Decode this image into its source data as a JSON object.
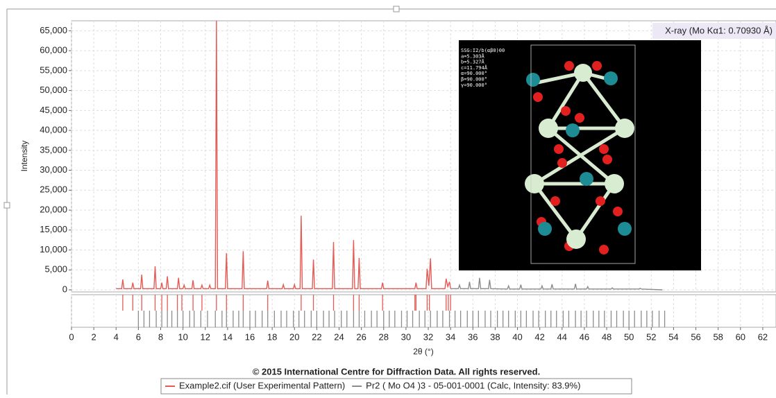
{
  "chart_data": {
    "type": "line",
    "x_label": "2θ (°)",
    "y_label": "Intensity",
    "annotation": "X-ray (Mo Kα1: 0.70930 Å)",
    "copyright": "© 2015 International Centre for Diffraction Data. All rights reserved.",
    "xlim": [
      0,
      63
    ],
    "ylim": [
      0,
      67500
    ],
    "xticks": [
      0,
      2,
      4,
      6,
      8,
      10,
      12,
      14,
      16,
      18,
      20,
      22,
      24,
      26,
      28,
      30,
      32,
      34,
      36,
      38,
      40,
      42,
      44,
      46,
      48,
      50,
      52,
      54,
      56,
      58,
      60,
      62
    ],
    "yticks": [
      0,
      {
        "value": 5000,
        "label": "5,000"
      },
      {
        "value": 10000,
        "label": "10,000"
      },
      {
        "value": 15000,
        "label": "15,000"
      },
      {
        "value": 20000,
        "label": "20,000"
      },
      {
        "value": 25000,
        "label": "25,000"
      },
      {
        "value": 30000,
        "label": "30,000"
      },
      {
        "value": 35000,
        "label": "35,000"
      },
      {
        "value": 40000,
        "label": "40,000"
      },
      {
        "value": 45000,
        "label": "45,000"
      },
      {
        "value": 50000,
        "label": "50,000"
      },
      {
        "value": 55000,
        "label": "55,000"
      },
      {
        "value": 60000,
        "label": "60,000"
      },
      {
        "value": 65000,
        "label": "65,000"
      }
    ],
    "grid": true,
    "series": [
      {
        "name": "Example2.cif (User Experimental Pattern)",
        "color": "#e45a55",
        "x": [
          4.0,
          4.5,
          4.6,
          4.7,
          5.4,
          5.5,
          5.6,
          6.2,
          6.3,
          6.4,
          7.4,
          7.5,
          7.6,
          8.0,
          8.1,
          8.2,
          8.5,
          8.6,
          8.7,
          9.5,
          9.6,
          9.7,
          10.0,
          10.1,
          10.2,
          10.8,
          10.9,
          11.0,
          11.6,
          11.7,
          11.8,
          12.3,
          12.4,
          12.5,
          12.9,
          13.0,
          13.1,
          13.8,
          13.9,
          14.0,
          15.3,
          15.4,
          15.5,
          17.5,
          17.6,
          17.7,
          18.9,
          19.0,
          19.1,
          19.9,
          20.0,
          20.1,
          20.5,
          20.6,
          20.7,
          21.6,
          21.7,
          21.8,
          23.4,
          23.5,
          23.6,
          25.2,
          25.3,
          25.4,
          25.7,
          25.8,
          25.9,
          27.8,
          27.9,
          28.0,
          30.8,
          30.9,
          31.0,
          31.8,
          31.9,
          32.05,
          32.2,
          32.3,
          33.5,
          33.6,
          33.75,
          33.9,
          34.0
        ],
        "values": [
          300,
          300,
          2600,
          300,
          300,
          1800,
          300,
          300,
          3800,
          300,
          300,
          5900,
          300,
          300,
          1800,
          300,
          300,
          3400,
          300,
          300,
          3000,
          300,
          300,
          1200,
          300,
          300,
          2400,
          300,
          300,
          1200,
          300,
          300,
          1200,
          300,
          300,
          67500,
          300,
          300,
          9200,
          300,
          300,
          9700,
          300,
          300,
          2300,
          300,
          300,
          1300,
          300,
          300,
          1300,
          300,
          300,
          18600,
          300,
          300,
          7600,
          300,
          300,
          12000,
          300,
          300,
          12500,
          300,
          300,
          8000,
          300,
          300,
          1800,
          300,
          300,
          1800,
          300,
          300,
          5300,
          1000,
          7900,
          300,
          300,
          2800,
          800,
          2000,
          300
        ],
        "reflections": [
          4.6,
          5.5,
          6.3,
          7.5,
          8.1,
          8.6,
          9.5,
          9.9,
          10.9,
          11.7,
          13.0,
          13.9,
          15.4,
          17.6,
          20.6,
          21.7,
          23.5,
          25.3,
          25.8,
          27.9,
          30.8,
          30.9,
          31.9,
          32.1,
          33.6,
          33.8,
          34.0
        ]
      },
      {
        "name": "Pr2 ( Mo O4 )3 - 05-001-0001 (Calc, Intensity: 83.9%)",
        "color": "#8c8c8c",
        "x": [
          34.0,
          34.7,
          34.8,
          34.9,
          35.6,
          35.7,
          35.8,
          36.5,
          36.6,
          36.7,
          37.4,
          37.5,
          37.6,
          39.1,
          39.2,
          39.3,
          40.2,
          40.3,
          40.4,
          42.1,
          42.2,
          42.3,
          43.0,
          43.1,
          43.2,
          45.1,
          45.2,
          45.3,
          46.2,
          46.3,
          46.4,
          48.4,
          48.5,
          48.6,
          50.9,
          51.0,
          51.1,
          53.0
        ],
        "values": [
          300,
          300,
          1200,
          300,
          300,
          2000,
          300,
          300,
          3000,
          300,
          300,
          2500,
          300,
          200,
          1000,
          200,
          200,
          1300,
          200,
          200,
          1000,
          200,
          200,
          1400,
          200,
          200,
          1500,
          200,
          200,
          800,
          200,
          200,
          500,
          200,
          200,
          400,
          200,
          0
        ],
        "reflections": [
          6.0,
          6.5,
          7.0,
          7.6,
          8.1,
          8.6,
          9.0,
          9.5,
          10.0,
          10.6,
          11.0,
          11.6,
          12.2,
          12.9,
          13.5,
          13.9,
          14.5,
          15.0,
          15.4,
          16.0,
          16.5,
          17.1,
          17.6,
          18.2,
          18.8,
          19.3,
          19.9,
          20.4,
          20.9,
          21.5,
          22.0,
          22.6,
          23.1,
          23.6,
          24.2,
          24.7,
          25.3,
          25.8,
          26.3,
          26.9,
          27.4,
          28.0,
          28.5,
          29.0,
          29.6,
          30.1,
          30.6,
          31.2,
          31.7,
          32.2,
          32.8,
          33.3,
          33.9,
          34.4,
          34.9,
          35.5,
          36.0,
          36.5,
          37.1,
          37.6,
          38.2,
          38.7,
          39.2,
          39.8,
          40.3,
          40.8,
          41.4,
          41.9,
          42.5,
          43.0,
          43.5,
          44.1,
          44.6,
          45.2,
          45.7,
          46.2,
          46.8,
          47.3,
          47.8,
          48.4,
          48.9,
          49.5,
          50.0,
          50.5,
          51.1,
          51.6,
          52.1,
          52.7,
          53.2
        ]
      }
    ]
  },
  "inset": {
    "lines": [
      "SSG:I2/b(αβ0)00",
      "a=5.303Å",
      "b=5.327Å",
      "c=11.794Å",
      "α=90.000°",
      "β=90.000°",
      "γ=90.000°"
    ]
  }
}
